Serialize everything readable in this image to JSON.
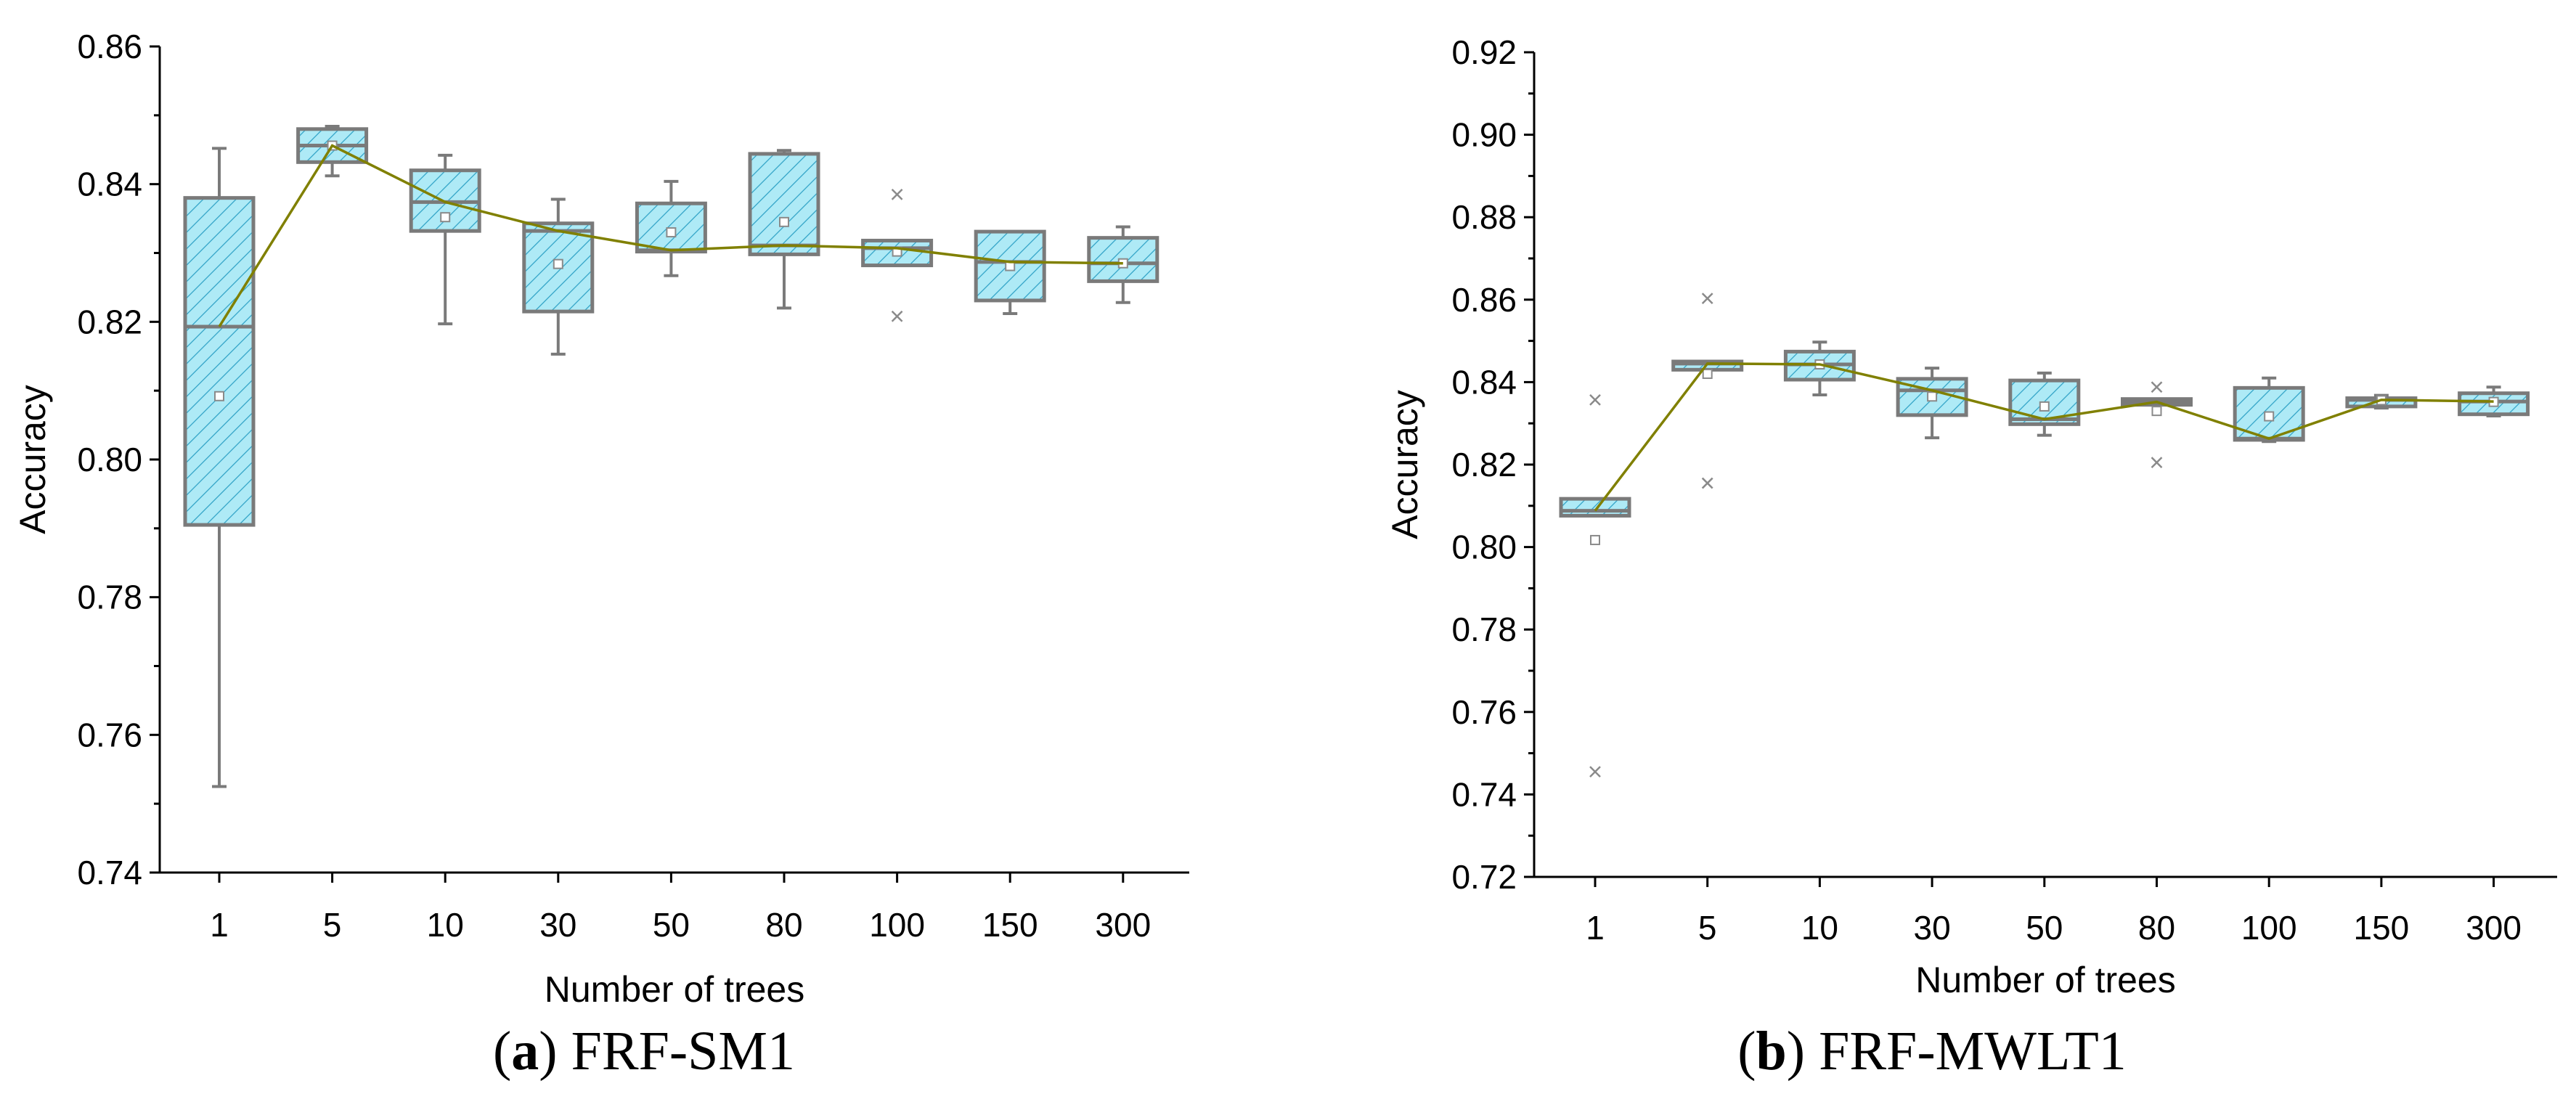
{
  "colors": {
    "box_fill": "#aeeaf6",
    "box_stroke": "#7a7a7a",
    "trend_line": "#808000"
  },
  "chart_data": [
    {
      "type": "box",
      "caption_letter": "a",
      "caption_title": "FRF-SM1",
      "xlabel": "Number of trees",
      "ylabel": "Accuracy",
      "ylim": [
        0.74,
        0.86
      ],
      "yticks": [
        0.74,
        0.76,
        0.78,
        0.8,
        0.82,
        0.84,
        0.86
      ],
      "ytick_labels": [
        "0.74",
        "0.76",
        "0.78",
        "0.80",
        "0.82",
        "0.84",
        "0.86"
      ],
      "categories": [
        "1",
        "5",
        "10",
        "30",
        "50",
        "80",
        "100",
        "150",
        "300"
      ],
      "boxes": [
        {
          "min": 0.7525,
          "q1": 0.7905,
          "median": 0.8193,
          "q3": 0.838,
          "max": 0.8452,
          "mean": 0.8092,
          "outliers": []
        },
        {
          "min": 0.8412,
          "q1": 0.8432,
          "median": 0.8456,
          "q3": 0.848,
          "max": 0.8484,
          "mean": 0.8456,
          "outliers": []
        },
        {
          "min": 0.8197,
          "q1": 0.8332,
          "median": 0.8374,
          "q3": 0.842,
          "max": 0.8442,
          "mean": 0.8352,
          "outliers": []
        },
        {
          "min": 0.8153,
          "q1": 0.8215,
          "median": 0.8332,
          "q3": 0.8343,
          "max": 0.8378,
          "mean": 0.8284,
          "outliers": []
        },
        {
          "min": 0.8267,
          "q1": 0.8302,
          "median": 0.8304,
          "q3": 0.8372,
          "max": 0.8404,
          "mean": 0.833,
          "outliers": []
        },
        {
          "min": 0.822,
          "q1": 0.8298,
          "median": 0.8311,
          "q3": 0.8444,
          "max": 0.8449,
          "mean": 0.8345,
          "outliers": []
        },
        {
          "min": 0.8282,
          "q1": 0.8282,
          "median": 0.8307,
          "q3": 0.8318,
          "max": 0.8318,
          "mean": 0.8302,
          "outliers": [
            0.8208,
            0.8385
          ]
        },
        {
          "min": 0.8212,
          "q1": 0.8231,
          "median": 0.8287,
          "q3": 0.8331,
          "max": 0.8331,
          "mean": 0.8281,
          "outliers": []
        },
        {
          "min": 0.8228,
          "q1": 0.8259,
          "median": 0.8285,
          "q3": 0.8322,
          "max": 0.8338,
          "mean": 0.8285,
          "outliers": []
        }
      ]
    },
    {
      "type": "box",
      "caption_letter": "b",
      "caption_title": "FRF-MWLT1",
      "xlabel": "Number of trees",
      "ylabel": "Accuracy",
      "ylim": [
        0.72,
        0.92
      ],
      "yticks": [
        0.72,
        0.74,
        0.76,
        0.78,
        0.8,
        0.82,
        0.84,
        0.86,
        0.88,
        0.9,
        0.92
      ],
      "ytick_labels": [
        "0.72",
        "0.74",
        "0.76",
        "0.78",
        "0.80",
        "0.82",
        "0.84",
        "0.86",
        "0.88",
        "0.90",
        "0.92"
      ],
      "categories": [
        "1",
        "5",
        "10",
        "30",
        "50",
        "80",
        "100",
        "150",
        "300"
      ],
      "boxes": [
        {
          "min": 0.8076,
          "q1": 0.8076,
          "median": 0.8088,
          "q3": 0.8117,
          "max": 0.8117,
          "mean": 0.8017,
          "outliers": [
            0.7455,
            0.8357
          ]
        },
        {
          "min": 0.843,
          "q1": 0.843,
          "median": 0.8445,
          "q3": 0.845,
          "max": 0.845,
          "mean": 0.842,
          "outliers": [
            0.8155,
            0.8603
          ]
        },
        {
          "min": 0.8369,
          "q1": 0.8406,
          "median": 0.8443,
          "q3": 0.8474,
          "max": 0.8497,
          "mean": 0.8443,
          "outliers": []
        },
        {
          "min": 0.8265,
          "q1": 0.832,
          "median": 0.838,
          "q3": 0.8408,
          "max": 0.8434,
          "mean": 0.8365,
          "outliers": []
        },
        {
          "min": 0.8271,
          "q1": 0.8298,
          "median": 0.831,
          "q3": 0.8404,
          "max": 0.8422,
          "mean": 0.8341,
          "outliers": []
        },
        {
          "min": 0.8345,
          "q1": 0.8345,
          "median": 0.8352,
          "q3": 0.8359,
          "max": 0.8359,
          "mean": 0.833,
          "outliers": [
            0.8205,
            0.8388
          ]
        },
        {
          "min": 0.8256,
          "q1": 0.826,
          "median": 0.8263,
          "q3": 0.8386,
          "max": 0.841,
          "mean": 0.8317,
          "outliers": []
        },
        {
          "min": 0.8337,
          "q1": 0.8341,
          "median": 0.8357,
          "q3": 0.8361,
          "max": 0.8368,
          "mean": 0.8356,
          "outliers": []
        },
        {
          "min": 0.8318,
          "q1": 0.8322,
          "median": 0.8353,
          "q3": 0.8373,
          "max": 0.8388,
          "mean": 0.8352,
          "outliers": []
        }
      ]
    }
  ]
}
